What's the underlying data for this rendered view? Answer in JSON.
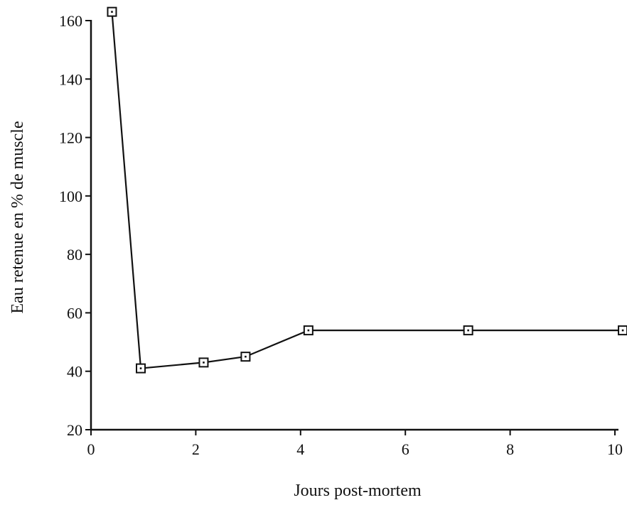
{
  "chart_data": {
    "type": "line",
    "title": "",
    "xlabel": "Jours post-mortem",
    "ylabel": "Eau retenue en % de muscle",
    "xlim": [
      0,
      10
    ],
    "ylim": [
      20,
      160
    ],
    "x_ticks": [
      "0",
      "2",
      "4",
      "6",
      "8",
      "10"
    ],
    "y_ticks": [
      "20",
      "40",
      "60",
      "80",
      "100",
      "120",
      "140",
      "160"
    ],
    "grid": false,
    "legend": "none",
    "marker": "square",
    "line_color": "#111111",
    "series": [
      {
        "x": [
          0.4,
          0.95,
          2.15,
          2.95,
          4.15,
          7.2,
          10.15
        ],
        "y": [
          163,
          41,
          43,
          45,
          54,
          54,
          54
        ]
      }
    ]
  }
}
